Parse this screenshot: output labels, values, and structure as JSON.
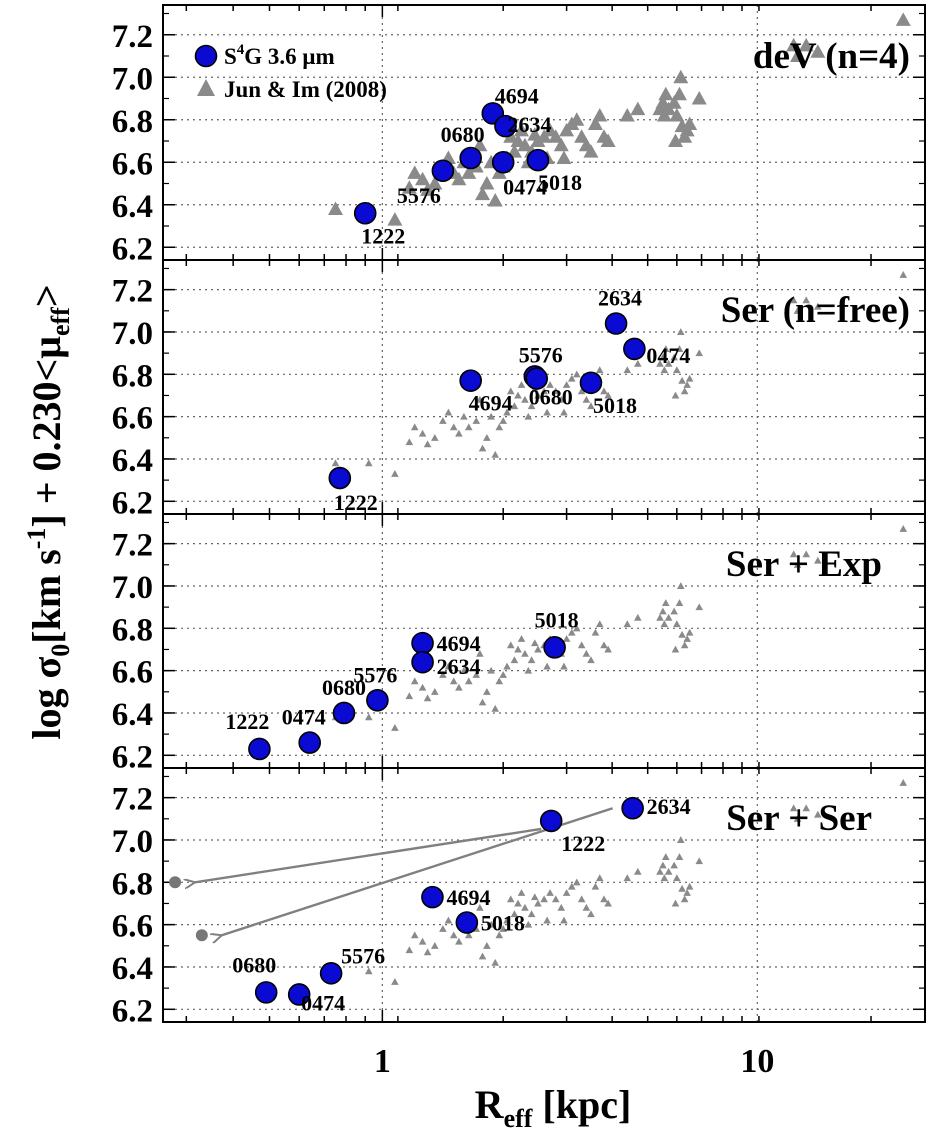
{
  "chart_data": {
    "type": "scatter",
    "xscale": "log",
    "xlim": [
      0.26,
      28
    ],
    "ylim": [
      6.14,
      7.34
    ],
    "xlabel_main": "R",
    "xlabel_sub": "eff",
    "xlabel_tail": " [kpc]",
    "ylabel_parts": [
      "log σ",
      "0",
      "[km s",
      "-1",
      "] + 0.230<μ",
      "eff",
      ">"
    ],
    "x_ticks": [
      1,
      10
    ],
    "x_tick_labels": [
      "1",
      "10"
    ],
    "y_ticks": [
      6.2,
      6.4,
      6.6,
      6.8,
      7.0,
      7.2
    ],
    "y_tick_labels": [
      "6.2",
      "6.4",
      "6.6",
      "6.8",
      "7.0",
      "7.2"
    ],
    "grid": true,
    "legend": {
      "placement": "top-left",
      "entries": [
        {
          "label_parts": [
            "S",
            "4",
            "G 3.6 μm"
          ],
          "marker": "circle",
          "color": "#0a0ad2"
        },
        {
          "label_parts": [
            "Jun & Im (2008)"
          ],
          "marker": "triangle",
          "color": "#8a8a8a"
        }
      ]
    },
    "colors": {
      "s4g": "#0a0ad2",
      "jun_im": "#8a8a8a",
      "arrow": "#808080"
    },
    "comparison_series": {
      "name": "Jun & Im (2008)",
      "points": [
        [
          0.75,
          6.38
        ],
        [
          0.92,
          6.38
        ],
        [
          1.08,
          6.33
        ],
        [
          1.18,
          6.48
        ],
        [
          1.22,
          6.55
        ],
        [
          1.28,
          6.52
        ],
        [
          1.32,
          6.47
        ],
        [
          1.38,
          6.5
        ],
        [
          1.45,
          6.58
        ],
        [
          1.5,
          6.62
        ],
        [
          1.55,
          6.55
        ],
        [
          1.6,
          6.52
        ],
        [
          1.65,
          6.6
        ],
        [
          1.7,
          6.55
        ],
        [
          1.78,
          6.58
        ],
        [
          1.82,
          6.68
        ],
        [
          1.85,
          6.45
        ],
        [
          1.9,
          6.5
        ],
        [
          1.95,
          6.6
        ],
        [
          2.0,
          6.42
        ],
        [
          2.05,
          6.55
        ],
        [
          2.1,
          6.58
        ],
        [
          2.15,
          6.62
        ],
        [
          2.2,
          6.72
        ],
        [
          2.25,
          6.65
        ],
        [
          2.3,
          6.7
        ],
        [
          2.35,
          6.75
        ],
        [
          2.4,
          6.68
        ],
        [
          2.45,
          6.6
        ],
        [
          2.5,
          6.65
        ],
        [
          2.55,
          6.73
        ],
        [
          2.6,
          6.7
        ],
        [
          2.7,
          6.72
        ],
        [
          2.75,
          6.62
        ],
        [
          2.8,
          6.75
        ],
        [
          2.9,
          6.72
        ],
        [
          3.0,
          6.68
        ],
        [
          3.05,
          6.62
        ],
        [
          3.1,
          6.75
        ],
        [
          3.2,
          6.78
        ],
        [
          3.3,
          6.8
        ],
        [
          3.4,
          6.72
        ],
        [
          3.5,
          6.68
        ],
        [
          3.6,
          6.65
        ],
        [
          3.7,
          6.78
        ],
        [
          3.8,
          6.82
        ],
        [
          3.9,
          6.72
        ],
        [
          4.0,
          6.7
        ],
        [
          4.5,
          6.82
        ],
        [
          4.8,
          6.85
        ],
        [
          5.5,
          6.85
        ],
        [
          5.6,
          6.88
        ],
        [
          5.65,
          6.82
        ],
        [
          5.7,
          6.92
        ],
        [
          5.8,
          6.85
        ],
        [
          6.0,
          6.88
        ],
        [
          6.05,
          6.7
        ],
        [
          6.1,
          6.82
        ],
        [
          6.2,
          6.92
        ],
        [
          6.25,
          7.0
        ],
        [
          6.3,
          6.77
        ],
        [
          6.4,
          6.72
        ],
        [
          6.5,
          6.75
        ],
        [
          6.6,
          6.78
        ],
        [
          7.0,
          6.9
        ],
        [
          12.5,
          7.15
        ],
        [
          12.8,
          7.1
        ],
        [
          13.5,
          7.15
        ],
        [
          14.5,
          7.12
        ],
        [
          24.5,
          7.27
        ]
      ]
    },
    "panels": [
      {
        "title": "deV (n=4)",
        "points": [
          {
            "label": "1222",
            "x": 0.9,
            "y": 6.36
          },
          {
            "label": "5576",
            "x": 1.45,
            "y": 6.56
          },
          {
            "label": "0680",
            "x": 1.72,
            "y": 6.62
          },
          {
            "label": "4694",
            "x": 1.97,
            "y": 6.83
          },
          {
            "label": "2634",
            "x": 2.13,
            "y": 6.77
          },
          {
            "label": "0474",
            "x": 2.1,
            "y": 6.6
          },
          {
            "label": "5018",
            "x": 2.6,
            "y": 6.61
          }
        ]
      },
      {
        "title": "Ser (n=free)",
        "points": [
          {
            "label": "1222",
            "x": 0.77,
            "y": 6.31
          },
          {
            "label": "4694",
            "x": 1.72,
            "y": 6.77
          },
          {
            "label": "5576",
            "x": 2.55,
            "y": 6.79
          },
          {
            "label": "0680",
            "x": 2.58,
            "y": 6.78
          },
          {
            "label": "5018",
            "x": 3.6,
            "y": 6.76
          },
          {
            "label": "2634",
            "x": 4.2,
            "y": 7.04
          },
          {
            "label": "0474",
            "x": 4.7,
            "y": 6.92
          }
        ]
      },
      {
        "title": "Ser + Exp",
        "points": [
          {
            "label": "1222",
            "x": 0.47,
            "y": 6.23
          },
          {
            "label": "0474",
            "x": 0.64,
            "y": 6.26
          },
          {
            "label": "0680",
            "x": 0.79,
            "y": 6.4
          },
          {
            "label": "5576",
            "x": 0.97,
            "y": 6.46
          },
          {
            "label": "4694",
            "x": 1.28,
            "y": 6.73
          },
          {
            "label": "2634",
            "x": 1.28,
            "y": 6.64
          },
          {
            "label": "5018",
            "x": 2.88,
            "y": 6.71
          }
        ]
      },
      {
        "title": "Ser + Ser",
        "points": [
          {
            "label": "0680",
            "x": 0.49,
            "y": 6.28
          },
          {
            "label": "0474",
            "x": 0.6,
            "y": 6.27
          },
          {
            "label": "5576",
            "x": 0.73,
            "y": 6.37
          },
          {
            "label": "4694",
            "x": 1.36,
            "y": 6.73
          },
          {
            "label": "5018",
            "x": 1.68,
            "y": 6.61
          },
          {
            "label": "1222",
            "x": 2.82,
            "y": 7.09
          },
          {
            "label": "2634",
            "x": 4.65,
            "y": 7.15
          }
        ],
        "arrow_targets": [
          {
            "from": "1222",
            "x": 0.28,
            "y": 6.8
          },
          {
            "from": "2634",
            "x": 0.33,
            "y": 6.55
          }
        ]
      }
    ]
  }
}
